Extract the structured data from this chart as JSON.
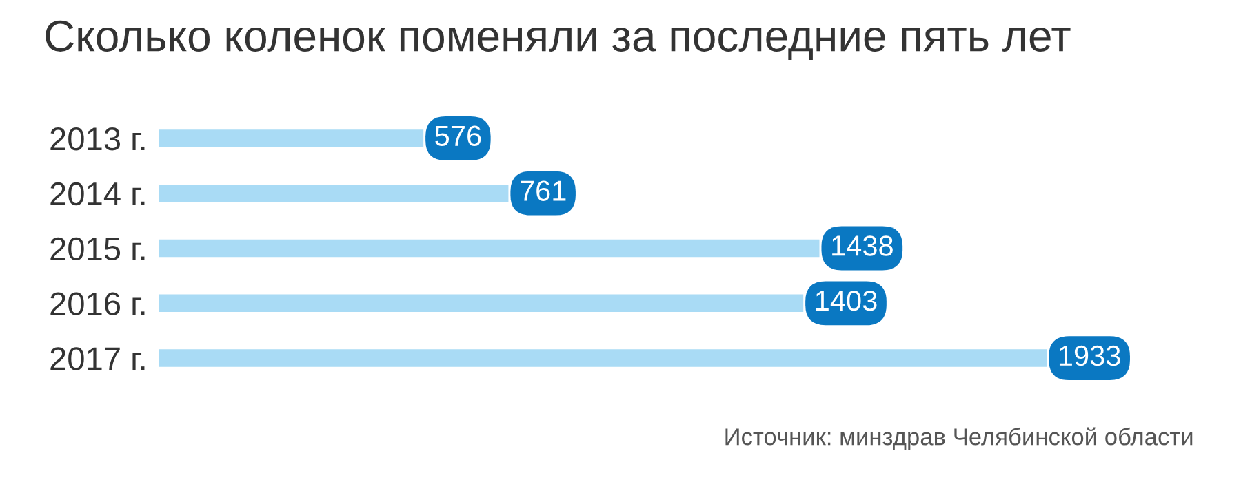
{
  "chart_data": {
    "type": "bar",
    "orientation": "horizontal",
    "title": "Сколько коленок поменяли за последние пять лет",
    "categories": [
      "2013 г.",
      "2014 г.",
      "2015 г.",
      "2016 г.",
      "2017 г."
    ],
    "values": [
      576,
      761,
      1438,
      1403,
      1933
    ],
    "color": "#a9dbf5",
    "data_labels": true,
    "grid": false,
    "legend": false,
    "annotations": [
      "Источник: минздрав Челябинской области"
    ]
  }
}
